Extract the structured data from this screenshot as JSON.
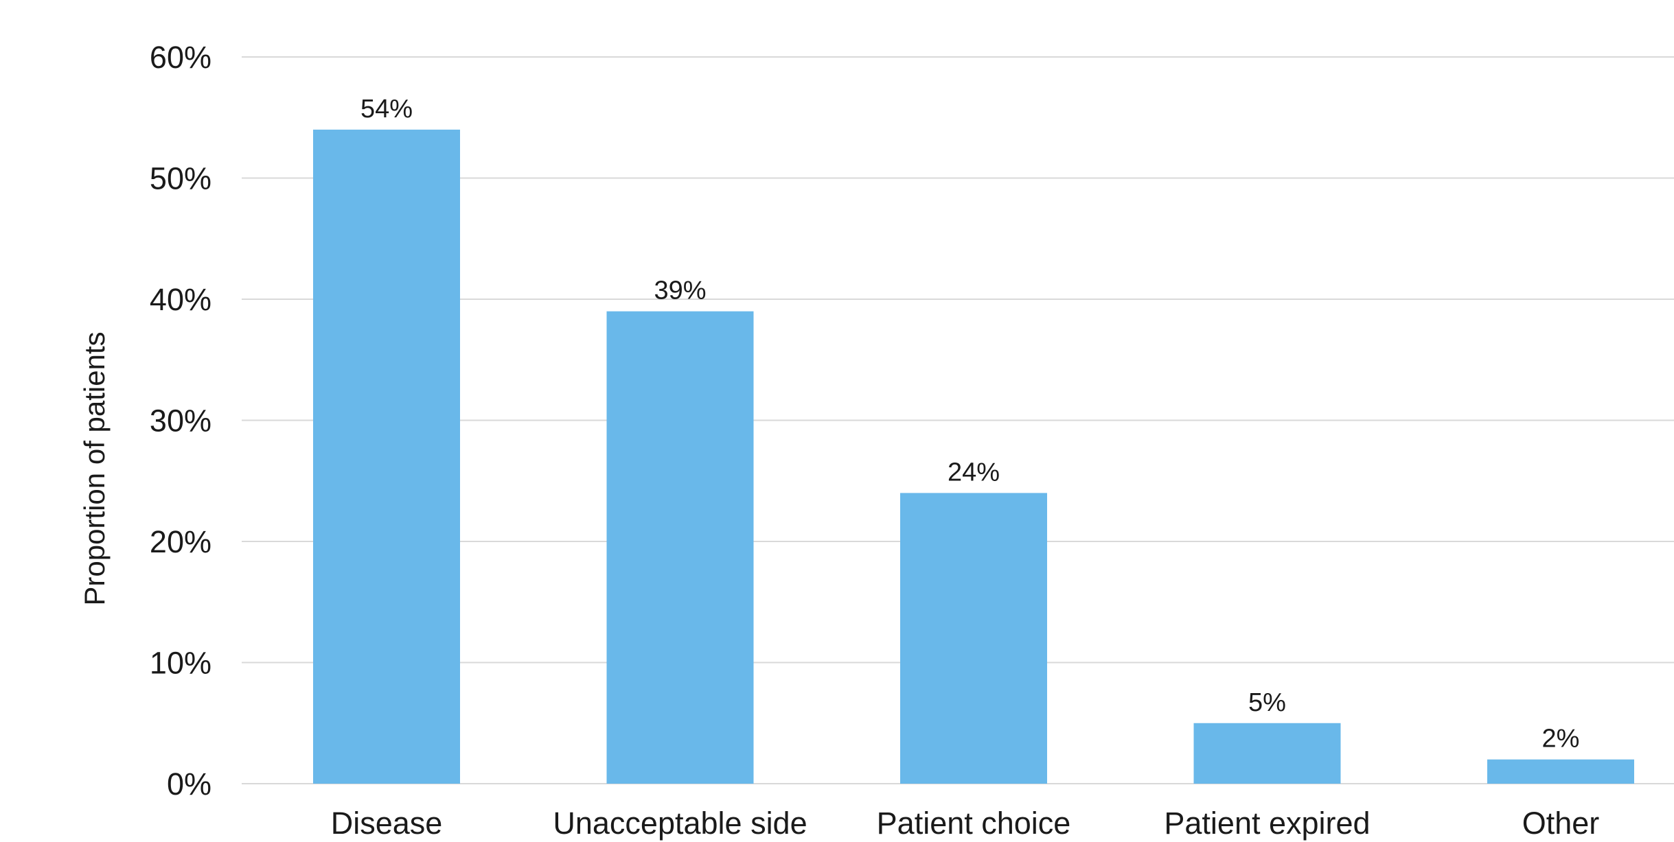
{
  "chart_data": {
    "type": "bar",
    "title": "",
    "xlabel": "",
    "ylabel": "Proportion of patients",
    "ylim": [
      0,
      60
    ],
    "yticks": [
      "0%",
      "10%",
      "20%",
      "30%",
      "40%",
      "50%",
      "60%"
    ],
    "grid": true,
    "categories": [
      "Disease",
      "Unacceptable side",
      "Patient choice",
      "Patient expired",
      "Other"
    ],
    "values": [
      54,
      39,
      24,
      5,
      2
    ],
    "data_labels": [
      "54%",
      "39%",
      "24%",
      "5%",
      "2%"
    ],
    "bar_color": "#69b8ea"
  }
}
